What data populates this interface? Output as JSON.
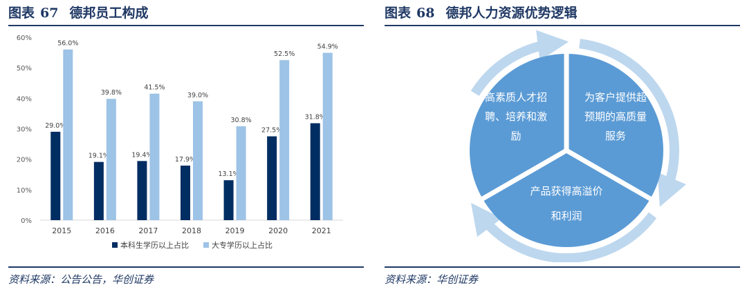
{
  "left": {
    "fig_label": "图表",
    "fig_num": "67",
    "fig_title": "德邦员工构成",
    "source": "资料来源：公告公告，华创证券"
  },
  "right": {
    "fig_label": "图表",
    "fig_num": "68",
    "fig_title": "德邦人力资源优势逻辑",
    "source": "资料来源：华创证券",
    "segments": {
      "top_left": [
        "高素质人才招",
        "聘、培养和激",
        "励"
      ],
      "top_right": [
        "为客户提供超",
        "预期的高质量",
        "服务"
      ],
      "bottom": [
        "产品获得高溢价",
        "和利润"
      ]
    },
    "colors": {
      "disc": "#5b9bd5",
      "ring": "#bdd7ee",
      "text": "#ffffff"
    }
  },
  "chart_data": {
    "type": "bar",
    "title": "德邦员工构成",
    "categories": [
      "2015",
      "2016",
      "2017",
      "2018",
      "2019",
      "2020",
      "2021"
    ],
    "series": [
      {
        "name": "本科生学历以上占比",
        "values": [
          29.0,
          19.1,
          19.4,
          17.9,
          13.1,
          27.5,
          31.8
        ],
        "color": "#002d62"
      },
      {
        "name": "大专学历以上占比",
        "values": [
          56.0,
          39.8,
          41.5,
          39.0,
          30.8,
          52.5,
          54.9
        ],
        "color": "#9dc3e6"
      }
    ],
    "yticks": [
      "0%",
      "10%",
      "20%",
      "30%",
      "40%",
      "50%",
      "60%"
    ],
    "ylim": [
      0,
      60
    ],
    "legend_position": "bottom",
    "grid": false
  }
}
